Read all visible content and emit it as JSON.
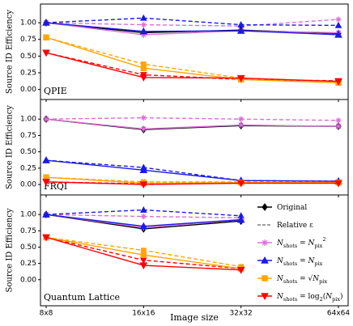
{
  "chart_data": {
    "type": "line",
    "xlabel": "Image size",
    "categories": [
      "8x8",
      "16x16",
      "32x32",
      "64x64"
    ],
    "legend": [
      {
        "label": [
          {
            "text": "Original"
          }
        ],
        "color": "#000000",
        "marker": "diamond",
        "dash": false
      },
      {
        "label": [
          {
            "text": "Relative ε"
          }
        ],
        "color": "#808080",
        "marker": null,
        "dash": true
      },
      {
        "label": [
          {
            "text": "N",
            "it": true
          },
          {
            "text": "shots",
            "sub": true
          },
          {
            "text": " = "
          },
          {
            "text": "N",
            "it": true
          },
          {
            "text": "pix",
            "sub": true
          },
          {
            "text": "2",
            "sup": true
          }
        ],
        "color": "#da70d6",
        "marker": "star",
        "dash": false
      },
      {
        "label": [
          {
            "text": "N",
            "it": true
          },
          {
            "text": "shots",
            "sub": true
          },
          {
            "text": " = "
          },
          {
            "text": "N",
            "it": true
          },
          {
            "text": "pix",
            "sub": true
          }
        ],
        "color": "#1a1ae6",
        "marker": "triangle",
        "dash": false
      },
      {
        "label": [
          {
            "text": "N",
            "it": true
          },
          {
            "text": "shots",
            "sub": true
          },
          {
            "text": " = √"
          },
          {
            "text": "N",
            "it": true
          },
          {
            "text": "pix",
            "sub": true
          }
        ],
        "color": "#ffa500",
        "marker": "square",
        "dash": false
      },
      {
        "label": [
          {
            "text": "N",
            "it": true
          },
          {
            "text": "shots",
            "sub": true
          },
          {
            "text": " = log"
          },
          {
            "text": "2",
            "sub": true
          },
          {
            "text": "("
          },
          {
            "text": "N",
            "it": true
          },
          {
            "text": "pix",
            "sub": true
          },
          {
            "text": ")"
          }
        ],
        "color": "#ff0000",
        "marker": "triangle-down",
        "dash": false
      }
    ],
    "panels": [
      {
        "label": "QPIE",
        "ylabel": "Source ID Efficiency",
        "ylim": [
          -0.15,
          1.28
        ],
        "yticks": [
          {
            "value": 0,
            "label": "0.00"
          },
          {
            "value": 0.25,
            "label": "0.25"
          },
          {
            "value": 0.5,
            "label": "0.50"
          },
          {
            "value": 0.75,
            "label": "0.75"
          },
          {
            "value": 1,
            "label": "1.00"
          }
        ],
        "series": [
          {
            "color": "#da70d6",
            "marker": "star",
            "dash": true,
            "values": [
              1.0,
              0.97,
              0.95,
              1.05
            ]
          },
          {
            "color": "#1a1ae6",
            "marker": "triangle",
            "dash": true,
            "values": [
              1.0,
              1.07,
              0.97,
              0.96
            ]
          },
          {
            "color": "#ffa500",
            "marker": "square",
            "dash": true,
            "values": [
              0.78,
              0.38,
              0.17,
              0.12
            ]
          },
          {
            "color": "#ff0000",
            "marker": "triangle-down",
            "dash": true,
            "values": [
              0.55,
              0.22,
              0.15,
              0.13
            ]
          },
          {
            "color": "#000000",
            "marker": "diamond",
            "dash": false,
            "values": [
              1.0,
              0.85,
              0.89,
              0.84
            ]
          },
          {
            "color": "#da70d6",
            "marker": "star",
            "dash": false,
            "values": [
              1.0,
              0.82,
              0.88,
              0.85
            ]
          },
          {
            "color": "#1a1ae6",
            "marker": "triangle",
            "dash": false,
            "values": [
              1.0,
              0.87,
              0.88,
              0.82
            ]
          },
          {
            "color": "#ffa500",
            "marker": "square",
            "dash": false,
            "values": [
              0.78,
              0.32,
              0.15,
              0.1
            ]
          },
          {
            "color": "#ff0000",
            "marker": "triangle-down",
            "dash": false,
            "values": [
              0.55,
              0.18,
              0.17,
              0.12
            ]
          }
        ]
      },
      {
        "label": "FRQI",
        "ylabel": "Source ID Efficiency",
        "ylim": [
          -0.16,
          1.3
        ],
        "yticks": [
          {
            "value": 0,
            "label": "0.00"
          },
          {
            "value": 0.25,
            "label": "0.25"
          },
          {
            "value": 0.5,
            "label": "0.50"
          },
          {
            "value": 0.75,
            "label": "0.75"
          },
          {
            "value": 1,
            "label": "1.00"
          }
        ],
        "series": [
          {
            "color": "#da70d6",
            "marker": "star",
            "dash": true,
            "values": [
              1.0,
              1.02,
              1.0,
              0.98
            ]
          },
          {
            "color": "#1a1ae6",
            "marker": "triangle",
            "dash": true,
            "values": [
              0.37,
              0.26,
              0.06,
              0.05
            ]
          },
          {
            "color": "#ffa500",
            "marker": "square",
            "dash": true,
            "values": [
              0.11,
              0.04,
              0.04,
              0.04
            ]
          },
          {
            "color": "#ff0000",
            "marker": "triangle-down",
            "dash": true,
            "values": [
              0.04,
              0.01,
              0.02,
              0.02
            ]
          },
          {
            "color": "#000000",
            "marker": "diamond",
            "dash": false,
            "values": [
              1.0,
              0.84,
              0.9,
              0.89
            ]
          },
          {
            "color": "#da70d6",
            "marker": "star",
            "dash": false,
            "values": [
              1.0,
              0.85,
              0.91,
              0.89
            ]
          },
          {
            "color": "#1a1ae6",
            "marker": "triangle",
            "dash": false,
            "values": [
              0.37,
              0.22,
              0.06,
              0.05
            ]
          },
          {
            "color": "#ffa500",
            "marker": "square",
            "dash": false,
            "values": [
              0.11,
              0.02,
              0.03,
              0.03
            ]
          },
          {
            "color": "#ff0000",
            "marker": "triangle-down",
            "dash": false,
            "values": [
              0.04,
              0.0,
              0.02,
              0.02
            ]
          }
        ]
      },
      {
        "label": "Quantum Lattice",
        "ylabel": "Source ID Efficiency",
        "ylim": [
          -0.4,
          1.3
        ],
        "yticks": [
          {
            "value": 0,
            "label": "0.00"
          },
          {
            "value": 0.25,
            "label": "0.25"
          },
          {
            "value": 0.5,
            "label": "0.50"
          },
          {
            "value": 0.75,
            "label": "0.75"
          },
          {
            "value": 1,
            "label": "1.00"
          }
        ],
        "series": [
          {
            "color": "#da70d6",
            "marker": "star",
            "dash": true,
            "values": [
              1.0,
              0.97,
              0.95,
              null
            ]
          },
          {
            "color": "#1a1ae6",
            "marker": "triangle",
            "dash": true,
            "values": [
              1.0,
              1.07,
              0.98,
              null
            ]
          },
          {
            "color": "#ffa500",
            "marker": "square",
            "dash": true,
            "values": [
              0.65,
              0.45,
              0.2,
              null
            ]
          },
          {
            "color": "#ff0000",
            "marker": "triangle-down",
            "dash": true,
            "values": [
              0.65,
              0.3,
              0.17,
              null
            ]
          },
          {
            "color": "#000000",
            "marker": "diamond",
            "dash": false,
            "values": [
              1.0,
              0.78,
              0.9,
              null
            ]
          },
          {
            "color": "#da70d6",
            "marker": "star",
            "dash": false,
            "values": [
              1.0,
              0.8,
              0.92,
              null
            ]
          },
          {
            "color": "#1a1ae6",
            "marker": "triangle",
            "dash": false,
            "values": [
              1.0,
              0.82,
              0.92,
              null
            ]
          },
          {
            "color": "#ffa500",
            "marker": "square",
            "dash": false,
            "values": [
              0.65,
              0.38,
              0.17,
              null
            ]
          },
          {
            "color": "#ff0000",
            "marker": "triangle-down",
            "dash": false,
            "values": [
              0.65,
              0.22,
              0.15,
              null
            ]
          }
        ]
      }
    ]
  }
}
